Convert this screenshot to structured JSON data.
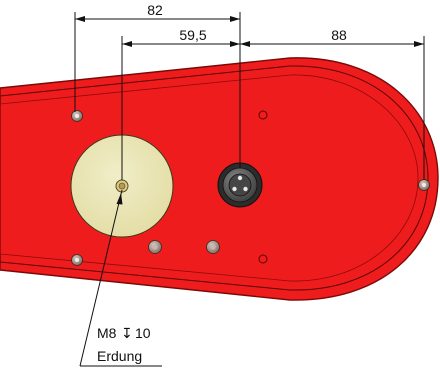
{
  "drawing": {
    "dimensions": {
      "top": "82",
      "middle": "59,5",
      "right": "88"
    },
    "note": {
      "line1": "M8",
      "depth_symbol": "↧",
      "line1_value": "10",
      "line2": "Erdung"
    },
    "colors": {
      "housing": "#ee1c1c",
      "housing_dark": "#c40f0f",
      "pad": "#e9e4b4",
      "connector": "#5a5a5a",
      "line": "#111111"
    }
  }
}
